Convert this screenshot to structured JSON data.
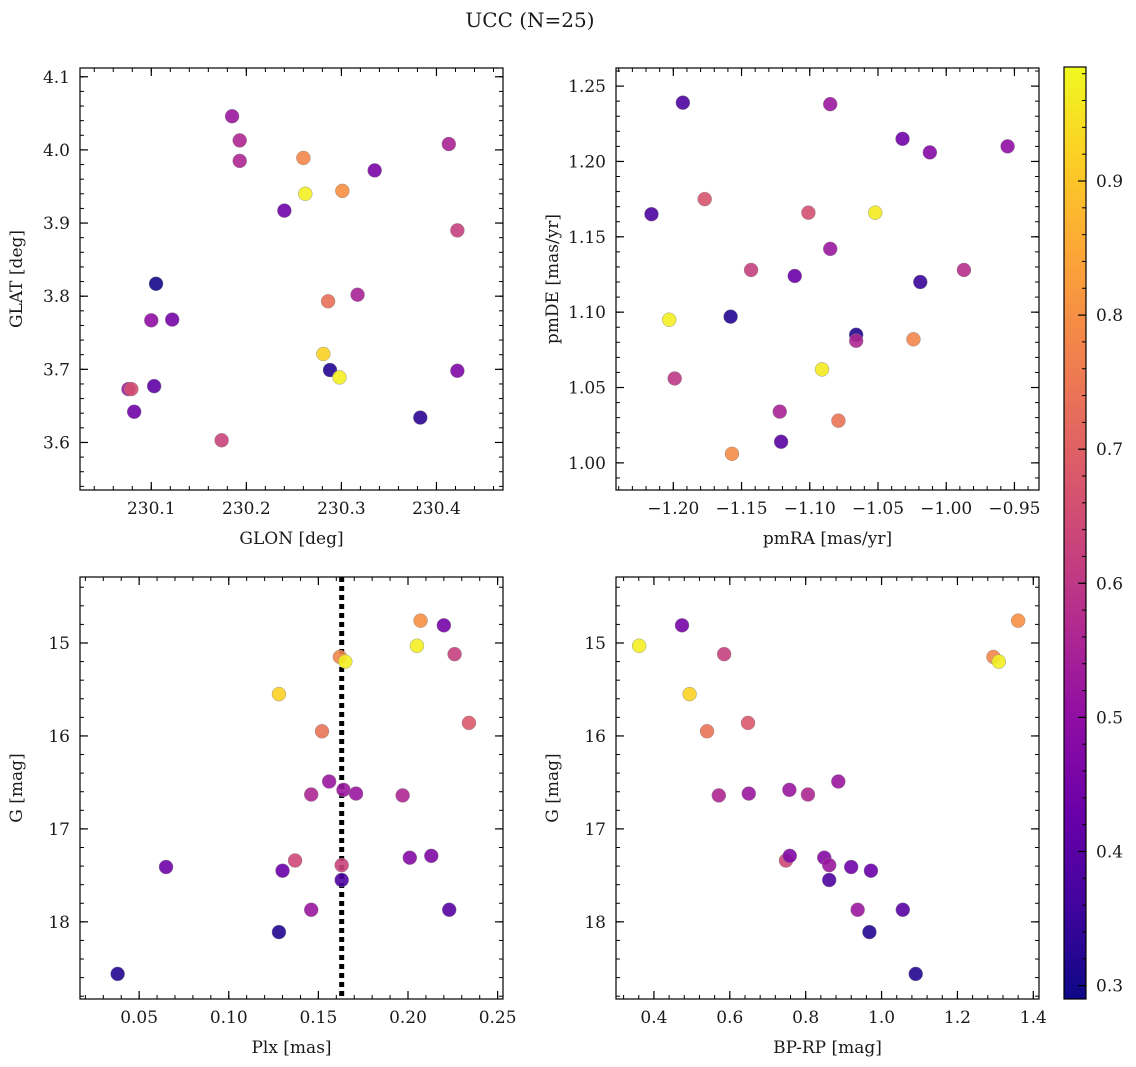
{
  "figure": {
    "title": "UCC (N=25)"
  },
  "colorbar": {
    "cmap": "plasma",
    "range": [
      0.29,
      0.985
    ],
    "ticks": [
      0.3,
      0.4,
      0.5,
      0.6,
      0.7,
      0.8,
      0.9
    ],
    "tick_labels": [
      "0.3",
      "0.4",
      "0.5",
      "0.6",
      "0.7",
      "0.8",
      "0.9"
    ]
  },
  "chart_data": [
    {
      "type": "scatter",
      "title": "",
      "xlabel": "GLON [deg]",
      "ylabel": "GLAT [deg]",
      "xlim": [
        230.025,
        230.47
      ],
      "ylim": [
        3.535,
        4.112
      ],
      "xticks": [
        230.1,
        230.2,
        230.3,
        230.4
      ],
      "xtick_labels": [
        "230.1",
        "230.2",
        "230.3",
        "230.4"
      ],
      "yticks": [
        3.6,
        3.7,
        3.8,
        3.9,
        4.0,
        4.1
      ],
      "ytick_labels": [
        "3.6",
        "3.7",
        "3.8",
        "3.9",
        "4.0",
        "4.1"
      ],
      "points": [
        {
          "x": 230.185,
          "y": 4.046,
          "c": 0.52
        },
        {
          "x": 230.193,
          "y": 4.013,
          "c": 0.56
        },
        {
          "x": 230.193,
          "y": 3.985,
          "c": 0.56
        },
        {
          "x": 230.26,
          "y": 3.989,
          "c": 0.78
        },
        {
          "x": 230.262,
          "y": 3.94,
          "c": 0.97
        },
        {
          "x": 230.301,
          "y": 3.944,
          "c": 0.8
        },
        {
          "x": 230.335,
          "y": 3.972,
          "c": 0.46
        },
        {
          "x": 230.413,
          "y": 4.008,
          "c": 0.55
        },
        {
          "x": 230.24,
          "y": 3.917,
          "c": 0.44
        },
        {
          "x": 230.422,
          "y": 3.89,
          "c": 0.62
        },
        {
          "x": 230.105,
          "y": 3.817,
          "c": 0.3
        },
        {
          "x": 230.286,
          "y": 3.793,
          "c": 0.73
        },
        {
          "x": 230.317,
          "y": 3.802,
          "c": 0.55
        },
        {
          "x": 230.1,
          "y": 3.767,
          "c": 0.5
        },
        {
          "x": 230.122,
          "y": 3.768,
          "c": 0.45
        },
        {
          "x": 230.281,
          "y": 3.721,
          "c": 0.92
        },
        {
          "x": 230.288,
          "y": 3.699,
          "c": 0.32
        },
        {
          "x": 230.298,
          "y": 3.689,
          "c": 0.97
        },
        {
          "x": 230.422,
          "y": 3.698,
          "c": 0.47
        },
        {
          "x": 230.076,
          "y": 3.673,
          "c": 0.53
        },
        {
          "x": 230.079,
          "y": 3.673,
          "c": 0.66
        },
        {
          "x": 230.103,
          "y": 3.677,
          "c": 0.41
        },
        {
          "x": 230.082,
          "y": 3.642,
          "c": 0.44
        },
        {
          "x": 230.383,
          "y": 3.634,
          "c": 0.33
        },
        {
          "x": 230.174,
          "y": 3.603,
          "c": 0.63
        }
      ]
    },
    {
      "type": "scatter",
      "title": "",
      "xlabel": "pmRA [mas/yr]",
      "ylabel": "pmDE [mas/yr]",
      "xlim": [
        -1.242,
        -0.932
      ],
      "ylim": [
        0.982,
        1.262
      ],
      "xticks": [
        -1.2,
        -1.15,
        -1.1,
        -1.05,
        -1.0,
        -0.95
      ],
      "xtick_labels": [
        "−1.20",
        "−1.15",
        "−1.10",
        "−1.05",
        "−1.00",
        "−0.95"
      ],
      "yticks": [
        1.0,
        1.05,
        1.1,
        1.15,
        1.2,
        1.25
      ],
      "ytick_labels": [
        "1.00",
        "1.05",
        "1.10",
        "1.15",
        "1.20",
        "1.25"
      ],
      "points": [
        {
          "x": -1.193,
          "y": 1.239,
          "c": 0.38
        },
        {
          "x": -1.085,
          "y": 1.238,
          "c": 0.52
        },
        {
          "x": -1.032,
          "y": 1.215,
          "c": 0.44
        },
        {
          "x": -1.012,
          "y": 1.206,
          "c": 0.48
        },
        {
          "x": -0.955,
          "y": 1.21,
          "c": 0.5
        },
        {
          "x": -1.216,
          "y": 1.165,
          "c": 0.38
        },
        {
          "x": -1.177,
          "y": 1.175,
          "c": 0.67
        },
        {
          "x": -1.101,
          "y": 1.166,
          "c": 0.66
        },
        {
          "x": -1.052,
          "y": 1.166,
          "c": 0.96
        },
        {
          "x": -1.085,
          "y": 1.142,
          "c": 0.52
        },
        {
          "x": -1.143,
          "y": 1.128,
          "c": 0.62
        },
        {
          "x": -1.111,
          "y": 1.124,
          "c": 0.43
        },
        {
          "x": -0.987,
          "y": 1.128,
          "c": 0.58
        },
        {
          "x": -1.019,
          "y": 1.12,
          "c": 0.35
        },
        {
          "x": -1.203,
          "y": 1.095,
          "c": 0.97
        },
        {
          "x": -1.158,
          "y": 1.097,
          "c": 0.32
        },
        {
          "x": -1.066,
          "y": 1.085,
          "c": 0.32
        },
        {
          "x": -1.066,
          "y": 1.081,
          "c": 0.56
        },
        {
          "x": -1.024,
          "y": 1.082,
          "c": 0.78
        },
        {
          "x": -1.199,
          "y": 1.056,
          "c": 0.6
        },
        {
          "x": -1.091,
          "y": 1.062,
          "c": 0.96
        },
        {
          "x": -1.122,
          "y": 1.034,
          "c": 0.55
        },
        {
          "x": -1.079,
          "y": 1.028,
          "c": 0.74
        },
        {
          "x": -1.121,
          "y": 1.014,
          "c": 0.4
        },
        {
          "x": -1.157,
          "y": 1.006,
          "c": 0.79
        }
      ]
    },
    {
      "type": "scatter",
      "title": "",
      "xlabel": "Plx [mas]",
      "ylabel": "G [mag]",
      "xlim": [
        0.017,
        0.253
      ],
      "ylim": [
        18.83,
        14.29
      ],
      "y_inverted": true,
      "vline": {
        "x": 0.163,
        "style": "dotted"
      },
      "xticks": [
        0.05,
        0.1,
        0.15,
        0.2,
        0.25
      ],
      "xtick_labels": [
        "0.05",
        "0.10",
        "0.15",
        "0.20",
        "0.25"
      ],
      "yticks": [
        15,
        16,
        17,
        18
      ],
      "ytick_labels": [
        "15",
        "16",
        "17",
        "18"
      ],
      "points": [
        {
          "x": 0.207,
          "y": 14.76,
          "c": 0.8
        },
        {
          "x": 0.22,
          "y": 14.81,
          "c": 0.45
        },
        {
          "x": 0.162,
          "y": 15.15,
          "c": 0.78
        },
        {
          "x": 0.165,
          "y": 15.2,
          "c": 0.97
        },
        {
          "x": 0.205,
          "y": 15.03,
          "c": 0.97
        },
        {
          "x": 0.226,
          "y": 15.12,
          "c": 0.62
        },
        {
          "x": 0.128,
          "y": 15.55,
          "c": 0.92
        },
        {
          "x": 0.234,
          "y": 15.86,
          "c": 0.68
        },
        {
          "x": 0.152,
          "y": 15.95,
          "c": 0.74
        },
        {
          "x": 0.156,
          "y": 16.49,
          "c": 0.52
        },
        {
          "x": 0.146,
          "y": 16.63,
          "c": 0.56
        },
        {
          "x": 0.164,
          "y": 16.58,
          "c": 0.52
        },
        {
          "x": 0.171,
          "y": 16.62,
          "c": 0.52
        },
        {
          "x": 0.197,
          "y": 16.64,
          "c": 0.56
        },
        {
          "x": 0.137,
          "y": 17.34,
          "c": 0.64
        },
        {
          "x": 0.163,
          "y": 17.39,
          "c": 0.63
        },
        {
          "x": 0.065,
          "y": 17.41,
          "c": 0.44
        },
        {
          "x": 0.13,
          "y": 17.45,
          "c": 0.43
        },
        {
          "x": 0.201,
          "y": 17.31,
          "c": 0.48
        },
        {
          "x": 0.213,
          "y": 17.29,
          "c": 0.47
        },
        {
          "x": 0.163,
          "y": 17.55,
          "c": 0.38
        },
        {
          "x": 0.146,
          "y": 17.87,
          "c": 0.52
        },
        {
          "x": 0.223,
          "y": 17.87,
          "c": 0.4
        },
        {
          "x": 0.128,
          "y": 18.11,
          "c": 0.32
        },
        {
          "x": 0.038,
          "y": 18.56,
          "c": 0.32
        }
      ]
    },
    {
      "type": "scatter",
      "title": "",
      "xlabel": "BP-RP [mag]",
      "ylabel": "G [mag]",
      "xlim": [
        0.3,
        1.415
      ],
      "ylim": [
        18.83,
        14.29
      ],
      "y_inverted": true,
      "xticks": [
        0.4,
        0.6,
        0.8,
        1.0,
        1.2,
        1.4
      ],
      "xtick_labels": [
        "0.4",
        "0.6",
        "0.8",
        "1.0",
        "1.2",
        "1.4"
      ],
      "yticks": [
        15,
        16,
        17,
        18
      ],
      "ytick_labels": [
        "15",
        "16",
        "17",
        "18"
      ],
      "points": [
        {
          "x": 0.361,
          "y": 15.03,
          "c": 0.97
        },
        {
          "x": 0.474,
          "y": 14.81,
          "c": 0.45
        },
        {
          "x": 0.585,
          "y": 15.12,
          "c": 0.62
        },
        {
          "x": 1.36,
          "y": 14.76,
          "c": 0.8
        },
        {
          "x": 1.295,
          "y": 15.15,
          "c": 0.78
        },
        {
          "x": 1.309,
          "y": 15.2,
          "c": 0.97
        },
        {
          "x": 0.494,
          "y": 15.55,
          "c": 0.92
        },
        {
          "x": 0.54,
          "y": 15.95,
          "c": 0.74
        },
        {
          "x": 0.648,
          "y": 15.86,
          "c": 0.68
        },
        {
          "x": 0.571,
          "y": 16.64,
          "c": 0.56
        },
        {
          "x": 0.65,
          "y": 16.62,
          "c": 0.52
        },
        {
          "x": 0.757,
          "y": 16.58,
          "c": 0.52
        },
        {
          "x": 0.806,
          "y": 16.63,
          "c": 0.56
        },
        {
          "x": 0.886,
          "y": 16.49,
          "c": 0.52
        },
        {
          "x": 0.748,
          "y": 17.34,
          "c": 0.64
        },
        {
          "x": 0.758,
          "y": 17.29,
          "c": 0.47
        },
        {
          "x": 0.849,
          "y": 17.31,
          "c": 0.48
        },
        {
          "x": 0.862,
          "y": 17.39,
          "c": 0.52
        },
        {
          "x": 0.92,
          "y": 17.41,
          "c": 0.44
        },
        {
          "x": 0.972,
          "y": 17.45,
          "c": 0.43
        },
        {
          "x": 0.862,
          "y": 17.55,
          "c": 0.38
        },
        {
          "x": 0.937,
          "y": 17.87,
          "c": 0.52
        },
        {
          "x": 1.056,
          "y": 17.87,
          "c": 0.4
        },
        {
          "x": 0.968,
          "y": 18.11,
          "c": 0.32
        },
        {
          "x": 1.09,
          "y": 18.56,
          "c": 0.32
        }
      ]
    }
  ]
}
